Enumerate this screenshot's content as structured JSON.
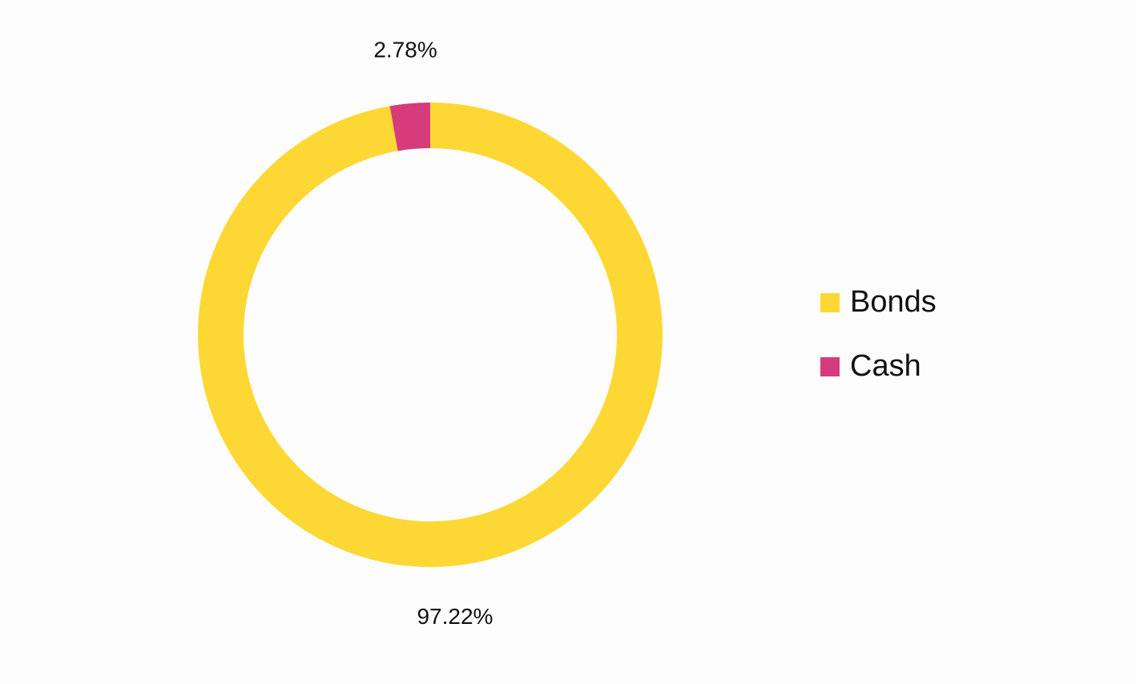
{
  "chart_data": {
    "type": "donut",
    "categories": [
      "Bonds",
      "Cash"
    ],
    "values": [
      97.22,
      2.78
    ],
    "value_labels": [
      "97.22%",
      "2.78%"
    ],
    "colors": [
      "#fdd835",
      "#d63c7c"
    ],
    "legend": "right"
  }
}
